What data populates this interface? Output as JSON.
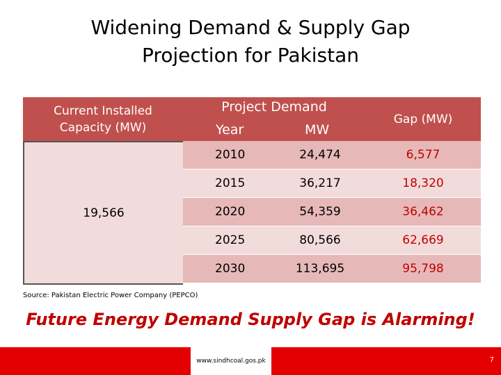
{
  "title": {
    "line1": "Widening Demand & Supply Gap",
    "line2": "Projection for Pakistan"
  },
  "table": {
    "capacity_header": "Current Installed\nCapacity (MW)",
    "capacity_value": "19,566",
    "demand_header": "Project Demand",
    "year_header": "Year",
    "mw_header": "MW",
    "gap_header": "Gap (MW)",
    "rows": [
      {
        "year": "2010",
        "mw": "24,474",
        "gap": "6,577"
      },
      {
        "year": "2015",
        "mw": "36,217",
        "gap": "18,320"
      },
      {
        "year": "2020",
        "mw": "54,359",
        "gap": "36,462"
      },
      {
        "year": "2025",
        "mw": "80,566",
        "gap": "62,669"
      },
      {
        "year": "2030",
        "mw": "113,695",
        "gap": "95,798"
      }
    ]
  },
  "source": "Source: Pakistan Electric Power Company (PEPCO)",
  "headline": "Future Energy Demand Supply Gap is Alarming!",
  "footer": {
    "url": "www.sindhcoal.gos.pk",
    "page": "7"
  },
  "colors": {
    "header": "#c0504d",
    "row_dark": "#e6b9b8",
    "row_light": "#f2dcdb",
    "alert": "#c00000",
    "footer": "#e40000"
  }
}
